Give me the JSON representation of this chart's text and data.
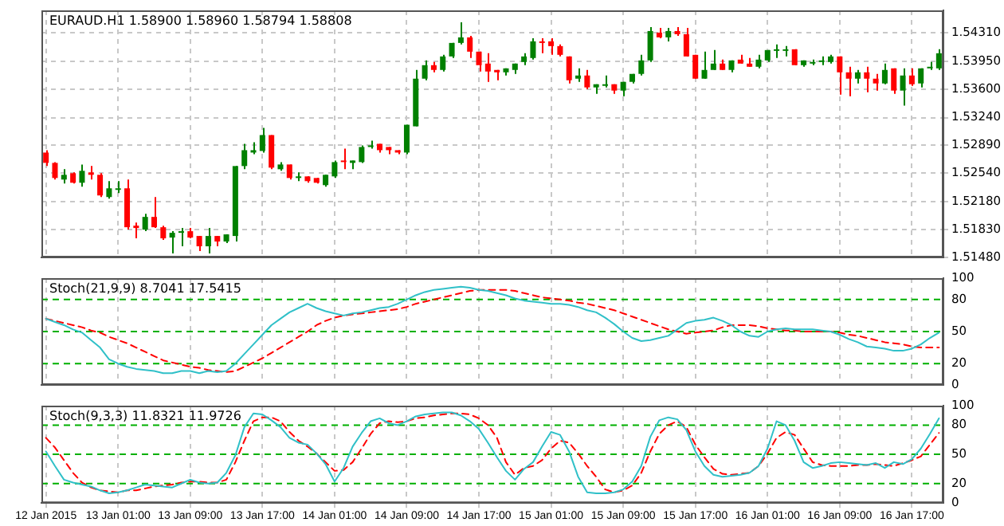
{
  "chart_data": [
    {
      "type": "candlestick",
      "title": "EURAUD.H1 1.58900 1.58960 1.58794 1.58808",
      "categories": [
        null,
        null,
        null,
        null,
        null,
        null,
        null,
        null,
        null,
        null,
        null,
        null,
        null,
        null,
        null,
        null,
        null,
        null,
        null,
        null,
        null,
        null,
        null,
        null,
        null,
        null,
        null,
        null,
        null,
        null,
        null,
        null,
        null,
        null,
        null,
        null,
        null,
        null,
        null,
        null,
        null,
        null,
        null,
        null,
        null,
        null,
        null,
        null,
        null,
        null,
        null,
        null,
        null,
        null,
        null,
        null,
        null,
        null,
        null,
        null,
        null,
        null,
        null,
        null,
        null,
        null,
        null,
        null,
        null,
        null,
        null,
        null,
        null,
        null,
        null,
        null,
        null,
        null,
        null,
        null,
        null,
        null,
        null,
        null,
        null,
        null,
        null,
        null,
        null,
        null,
        null,
        null,
        null,
        null,
        null,
        null,
        null,
        null,
        null,
        null
      ],
      "ohlc": [
        [
          1.528,
          1.5283,
          1.5263,
          1.5267
        ],
        [
          1.5267,
          1.5268,
          1.5246,
          1.5248
        ],
        [
          1.5246,
          1.5259,
          1.5241,
          1.5252
        ],
        [
          1.5254,
          1.5255,
          1.5241,
          1.5242
        ],
        [
          1.5242,
          1.5265,
          1.5237,
          1.5257
        ],
        [
          1.5255,
          1.5263,
          1.5246,
          1.5252
        ],
        [
          1.5252,
          1.5254,
          1.5224,
          1.5226
        ],
        [
          1.5224,
          1.5244,
          1.5222,
          1.5235
        ],
        [
          1.5233,
          1.5244,
          1.5229,
          1.5235
        ],
        [
          1.5235,
          1.5246,
          1.5183,
          1.5186
        ],
        [
          1.5188,
          1.5192,
          1.5172,
          1.5185
        ],
        [
          1.5183,
          1.5203,
          1.5181,
          1.5199
        ],
        [
          1.5199,
          1.5224,
          1.5185,
          1.5186
        ],
        [
          1.5186,
          1.5188,
          1.517,
          1.5172
        ],
        [
          1.5173,
          1.5181,
          1.5153,
          1.5179
        ],
        [
          1.5179,
          1.5185,
          1.5162,
          1.5181
        ],
        [
          1.5181,
          1.5185,
          1.5172,
          1.5173
        ],
        [
          1.5175,
          1.5175,
          1.5156,
          1.5162
        ],
        [
          1.5162,
          1.5185,
          1.5153,
          1.5175
        ],
        [
          1.5175,
          1.5175,
          1.5162,
          1.5168
        ],
        [
          1.5168,
          1.5177,
          1.5166,
          1.5177
        ],
        [
          1.5175,
          1.5263,
          1.5168,
          1.5263
        ],
        [
          1.5263,
          1.5291,
          1.5259,
          1.5283
        ],
        [
          1.528,
          1.5293,
          1.5278,
          1.5283
        ],
        [
          1.5282,
          1.5311,
          1.528,
          1.5302
        ],
        [
          1.5302,
          1.5302,
          1.5259,
          1.5261
        ],
        [
          1.5259,
          1.5268,
          1.5257,
          1.5265
        ],
        [
          1.5265,
          1.5265,
          1.5246,
          1.5248
        ],
        [
          1.5249,
          1.5255,
          1.5244,
          1.525
        ],
        [
          1.525,
          1.525,
          1.5242,
          1.5244
        ],
        [
          1.5248,
          1.5248,
          1.5241,
          1.5242
        ],
        [
          1.5239,
          1.5252,
          1.5237,
          1.5252
        ],
        [
          1.525,
          1.527,
          1.5248,
          1.5268
        ],
        [
          1.527,
          1.5285,
          1.5259,
          1.5268
        ],
        [
          1.5267,
          1.527,
          1.5259,
          1.527
        ],
        [
          1.5268,
          1.5289,
          1.5267,
          1.5287
        ],
        [
          1.5287,
          1.5295,
          1.5285,
          1.5289
        ],
        [
          1.5291,
          1.5291,
          1.528,
          1.5283
        ],
        [
          1.5287,
          1.5287,
          1.5278,
          1.5283
        ],
        [
          1.5283,
          1.5283,
          1.5278,
          1.528
        ],
        [
          1.528,
          1.5315,
          1.5278,
          1.5315
        ],
        [
          1.5313,
          1.5384,
          1.5313,
          1.5373
        ],
        [
          1.5373,
          1.5396,
          1.5371,
          1.539
        ],
        [
          1.539,
          1.5394,
          1.5381,
          1.5384
        ],
        [
          1.5384,
          1.5403,
          1.5382,
          1.5401
        ],
        [
          1.5401,
          1.5418,
          1.5399,
          1.5418
        ],
        [
          1.5418,
          1.5444,
          1.5416,
          1.5425
        ],
        [
          1.5425,
          1.5427,
          1.5399,
          1.5407
        ],
        [
          1.5407,
          1.5407,
          1.5382,
          1.539
        ],
        [
          1.5392,
          1.5405,
          1.5369,
          1.5382
        ],
        [
          1.5384,
          1.5384,
          1.5371,
          1.5381
        ],
        [
          1.5381,
          1.5386,
          1.5377,
          1.5386
        ],
        [
          1.5384,
          1.5392,
          1.5379,
          1.5392
        ],
        [
          1.5394,
          1.5405,
          1.539,
          1.5401
        ],
        [
          1.5399,
          1.5424,
          1.5397,
          1.542
        ],
        [
          1.542,
          1.5424,
          1.5405,
          1.5418
        ],
        [
          1.542,
          1.5424,
          1.5403,
          1.5414
        ],
        [
          1.5414,
          1.5416,
          1.5401,
          1.5403
        ],
        [
          1.5401,
          1.5401,
          1.5367,
          1.5371
        ],
        [
          1.5373,
          1.5386,
          1.5369,
          1.5377
        ],
        [
          1.5377,
          1.5384,
          1.536,
          1.5362
        ],
        [
          1.5362,
          1.5366,
          1.5354,
          1.5366
        ],
        [
          1.5365,
          1.5377,
          1.5362,
          1.5366
        ],
        [
          1.5366,
          1.5366,
          1.5354,
          1.5358
        ],
        [
          1.5358,
          1.5369,
          1.5351,
          1.5369
        ],
        [
          1.5369,
          1.5379,
          1.5367,
          1.5379
        ],
        [
          1.5379,
          1.5403,
          1.5377,
          1.5396
        ],
        [
          1.5396,
          1.5438,
          1.5394,
          1.5433
        ],
        [
          1.5431,
          1.5437,
          1.5424,
          1.5425
        ],
        [
          1.5425,
          1.5437,
          1.542,
          1.5433
        ],
        [
          1.5433,
          1.5438,
          1.5427,
          1.5429
        ],
        [
          1.5429,
          1.5437,
          1.5401,
          1.5401
        ],
        [
          1.5403,
          1.5403,
          1.5373,
          1.5373
        ],
        [
          1.5373,
          1.5407,
          1.5373,
          1.5384
        ],
        [
          1.5384,
          1.5409,
          1.5384,
          1.5392
        ],
        [
          1.5392,
          1.5397,
          1.5384,
          1.5384
        ],
        [
          1.5384,
          1.5396,
          1.5381,
          1.5396
        ],
        [
          1.5397,
          1.5403,
          1.5392,
          1.5392
        ],
        [
          1.5392,
          1.5399,
          1.5388,
          1.5388
        ],
        [
          1.5388,
          1.5403,
          1.5386,
          1.5397
        ],
        [
          1.5396,
          1.5409,
          1.5394,
          1.5409
        ],
        [
          1.5409,
          1.5416,
          1.5399,
          1.541
        ],
        [
          1.5409,
          1.5414,
          1.5401,
          1.541
        ],
        [
          1.541,
          1.541,
          1.539,
          1.539
        ],
        [
          1.539,
          1.5396,
          1.5388,
          1.5396
        ],
        [
          1.5393,
          1.5397,
          1.539,
          1.5394
        ],
        [
          1.5394,
          1.5401,
          1.539,
          1.5396
        ],
        [
          1.5394,
          1.5403,
          1.5392,
          1.5401
        ],
        [
          1.5401,
          1.5401,
          1.5353,
          1.5381
        ],
        [
          1.5381,
          1.5388,
          1.5351,
          1.5373
        ],
        [
          1.5373,
          1.5384,
          1.5367,
          1.5381
        ],
        [
          1.5381,
          1.5388,
          1.5356,
          1.5373
        ],
        [
          1.5373,
          1.5379,
          1.5358,
          1.5367
        ],
        [
          1.5367,
          1.5392,
          1.5366,
          1.5384
        ],
        [
          1.5386,
          1.5386,
          1.5354,
          1.5358
        ],
        [
          1.5358,
          1.5386,
          1.5339,
          1.5377
        ],
        [
          1.5377,
          1.5386,
          1.5364,
          1.5366
        ],
        [
          1.5367,
          1.5386,
          1.5362,
          1.5386
        ],
        [
          1.5386,
          1.5394,
          1.5384,
          1.5388
        ],
        [
          1.5386,
          1.541,
          1.5384,
          1.5405
        ]
      ],
      "colors": [
        "#ff0000",
        "#ff0000",
        "#008000",
        "#ff0000",
        "#008000",
        "#ff0000",
        "#ff0000",
        "#008000",
        "#008000",
        "#ff0000",
        "#ff0000",
        "#008000",
        "#ff0000",
        "#ff0000",
        "#008000",
        "#008000",
        "#ff0000",
        "#ff0000",
        "#008000",
        "#ff0000",
        "#008000",
        "#008000",
        "#008000",
        "#008000",
        "#008000",
        "#ff0000",
        "#008000",
        "#ff0000",
        "#008000",
        "#ff0000",
        "#ff0000",
        "#008000",
        "#008000",
        "#ff0000",
        "#008000",
        "#008000",
        "#008000",
        "#ff0000",
        "#ff0000",
        "#ff0000",
        "#008000",
        "#008000",
        "#008000",
        "#ff0000",
        "#008000",
        "#008000",
        "#008000",
        "#ff0000",
        "#ff0000",
        "#ff0000",
        "#ff0000",
        "#008000",
        "#008000",
        "#008000",
        "#008000",
        "#ff0000",
        "#ff0000",
        "#ff0000",
        "#ff0000",
        "#008000",
        "#ff0000",
        "#008000",
        "#008000",
        "#ff0000",
        "#008000",
        "#008000",
        "#008000",
        "#008000",
        "#ff0000",
        "#008000",
        "#ff0000",
        "#ff0000",
        "#ff0000",
        "#008000",
        "#008000",
        "#ff0000",
        "#008000",
        "#ff0000",
        "#ff0000",
        "#008000",
        "#008000",
        "#008000",
        "#008000",
        "#ff0000",
        "#008000",
        "#008000",
        "#008000",
        "#008000",
        "#ff0000",
        "#ff0000",
        "#008000",
        "#ff0000",
        "#ff0000",
        "#008000",
        "#ff0000",
        "#008000",
        "#ff0000",
        "#008000",
        "#008000",
        "#008000"
      ],
      "ylim": [
        1.5148,
        1.5459
      ],
      "yticks": [
        {
          "value": 1.5431,
          "label": "1.54310"
        },
        {
          "value": 1.5395,
          "label": "1.53950"
        },
        {
          "value": 1.536,
          "label": "1.53600"
        },
        {
          "value": 1.5324,
          "label": "1.53240"
        },
        {
          "value": 1.5289,
          "label": "1.52890"
        },
        {
          "value": 1.5254,
          "label": "1.52540"
        },
        {
          "value": 1.5218,
          "label": "1.52180"
        },
        {
          "value": 1.5183,
          "label": "1.51830"
        },
        {
          "value": 1.5148,
          "label": "1.51480"
        }
      ],
      "grid": true,
      "tick_labels": "y"
    },
    {
      "type": "line",
      "title": "Stoch(21,9,9) 8.7041 17.5415",
      "categories": [
        null,
        null,
        null,
        null,
        null,
        null,
        null,
        null,
        null,
        null,
        null,
        null,
        null,
        null,
        null,
        null,
        null,
        null,
        null,
        null,
        null,
        null,
        null,
        null,
        null,
        null,
        null,
        null,
        null,
        null,
        null,
        null,
        null,
        null,
        null,
        null,
        null,
        null,
        null,
        null,
        null,
        null,
        null,
        null,
        null,
        null,
        null,
        null,
        null,
        null,
        null,
        null,
        null,
        null,
        null,
        null,
        null,
        null,
        null,
        null,
        null,
        null,
        null,
        null,
        null,
        null,
        null,
        null,
        null,
        null,
        null,
        null,
        null,
        null,
        null,
        null,
        null,
        null,
        null,
        null,
        null,
        null,
        null,
        null,
        null,
        null,
        null,
        null,
        null,
        null,
        null,
        null,
        null,
        null,
        null,
        null,
        null,
        null,
        null,
        null
      ],
      "series": [
        {
          "color": "#30c0c8",
          "line_style": "solid",
          "values": [
            62,
            59,
            56,
            52,
            49,
            42,
            35,
            24,
            20,
            17,
            15,
            14,
            13,
            11,
            11,
            13,
            13,
            11,
            13,
            12,
            13,
            20,
            29,
            38,
            47,
            56,
            62,
            68,
            72,
            76,
            72,
            69,
            67,
            65,
            67,
            68,
            70,
            72,
            73,
            76,
            80,
            84,
            87,
            89,
            90,
            91,
            92,
            91,
            89,
            88,
            86,
            84,
            81,
            79,
            78,
            77,
            76,
            76,
            75,
            73,
            70,
            68,
            63,
            57,
            50,
            44,
            41,
            42,
            44,
            46,
            52,
            58,
            60,
            61,
            63,
            60,
            56,
            50,
            46,
            45,
            50,
            52,
            53,
            52,
            52,
            52,
            51,
            50,
            47,
            43,
            40,
            36,
            35,
            34,
            32,
            32,
            34,
            38,
            44,
            49
          ]
        },
        {
          "color": "#ff0000",
          "line_style": "dashed",
          "values": [
            62,
            60,
            58,
            56,
            54,
            51,
            49,
            45,
            42,
            39,
            35,
            31,
            27,
            23,
            21,
            19,
            17,
            16,
            14,
            13,
            12,
            13,
            17,
            21,
            25,
            30,
            35,
            40,
            45,
            50,
            56,
            60,
            63,
            65,
            66,
            67,
            68,
            69,
            70,
            71,
            73,
            76,
            78,
            80,
            82,
            84,
            86,
            88,
            89,
            89,
            89,
            89,
            88,
            86,
            84,
            82,
            81,
            80,
            79,
            77,
            76,
            74,
            72,
            70,
            67,
            64,
            61,
            58,
            55,
            52,
            50,
            48,
            49,
            50,
            51,
            54,
            56,
            56,
            56,
            55,
            53,
            52,
            51,
            51,
            50,
            50,
            50,
            50,
            49,
            47,
            46,
            44,
            42,
            40,
            39,
            38,
            36,
            35,
            35,
            35
          ]
        }
      ],
      "ylim": [
        0,
        100
      ],
      "yticks": [
        0,
        20,
        50,
        80,
        100
      ],
      "grid": "x",
      "tick_labels": "y",
      "ref_lines": [
        {
          "axis": "y",
          "value": 80,
          "color": "#00b000",
          "line_style": "dashed"
        },
        {
          "axis": "y",
          "value": 50,
          "color": "#00b000",
          "line_style": "dashed"
        },
        {
          "axis": "y",
          "value": 20,
          "color": "#00b000",
          "line_style": "dashed"
        }
      ]
    },
    {
      "type": "line",
      "title": "Stoch(9,3,3) 11.8321 11.9726",
      "categories": [
        "12 Jan 2015",
        null,
        null,
        null,
        null,
        null,
        null,
        null,
        "13 Jan 01:00",
        null,
        null,
        null,
        null,
        null,
        null,
        null,
        "13 Jan 09:00",
        null,
        null,
        null,
        null,
        null,
        null,
        null,
        "13 Jan 17:00",
        null,
        null,
        null,
        null,
        null,
        null,
        null,
        "14 Jan 01:00",
        null,
        null,
        null,
        null,
        null,
        null,
        null,
        "14 Jan 09:00",
        null,
        null,
        null,
        null,
        null,
        null,
        null,
        "14 Jan 17:00",
        null,
        null,
        null,
        null,
        null,
        null,
        null,
        "15 Jan 01:00",
        null,
        null,
        null,
        null,
        null,
        null,
        null,
        "15 Jan 09:00",
        null,
        null,
        null,
        null,
        null,
        null,
        null,
        "15 Jan 17:00",
        null,
        null,
        null,
        null,
        null,
        null,
        null,
        "16 Jan 01:00",
        null,
        null,
        null,
        null,
        null,
        null,
        null,
        "16 Jan 09:00",
        null,
        null,
        null,
        null,
        null,
        null,
        null,
        "16 Jan 17:00",
        null,
        null,
        null
      ],
      "series": [
        {
          "color": "#30c0c8",
          "line_style": "solid",
          "values": [
            53,
            38,
            24,
            21,
            19,
            17,
            13,
            10,
            11,
            13,
            16,
            19,
            18,
            17,
            16,
            20,
            24,
            21,
            20,
            21,
            31,
            49,
            78,
            92,
            91,
            85,
            78,
            67,
            62,
            60,
            51,
            40,
            22,
            36,
            58,
            72,
            84,
            87,
            82,
            80,
            84,
            89,
            91,
            92,
            93,
            93,
            90,
            84,
            76,
            62,
            47,
            33,
            24,
            35,
            42,
            58,
            73,
            70,
            53,
            27,
            11,
            10,
            10,
            11,
            14,
            22,
            38,
            68,
            85,
            88,
            86,
            75,
            53,
            38,
            29,
            27,
            28,
            29,
            31,
            38,
            56,
            84,
            80,
            64,
            42,
            36,
            38,
            41,
            42,
            41,
            40,
            39,
            41,
            36,
            42,
            40,
            45,
            56,
            71,
            87
          ]
        },
        {
          "color": "#ff0000",
          "line_style": "dashed",
          "values": [
            67,
            57,
            44,
            31,
            21,
            16,
            13,
            12,
            11,
            13,
            13,
            15,
            17,
            18,
            19,
            21,
            22,
            22,
            21,
            21,
            24,
            42,
            64,
            84,
            88,
            88,
            84,
            73,
            64,
            58,
            51,
            42,
            33,
            34,
            42,
            56,
            71,
            82,
            84,
            83,
            84,
            87,
            88,
            90,
            91,
            92,
            92,
            91,
            87,
            80,
            67,
            42,
            29,
            36,
            38,
            44,
            56,
            64,
            62,
            51,
            38,
            27,
            14,
            11,
            13,
            18,
            31,
            53,
            71,
            80,
            84,
            78,
            60,
            47,
            35,
            30,
            29,
            30,
            31,
            38,
            51,
            67,
            73,
            70,
            56,
            42,
            39,
            38,
            38,
            38,
            39,
            39,
            40,
            39,
            38,
            41,
            44,
            48,
            60,
            72
          ]
        }
      ],
      "ylim": [
        0,
        100
      ],
      "yticks": [
        0,
        20,
        50,
        80,
        100
      ],
      "grid": "x",
      "ref_lines": [
        {
          "axis": "y",
          "value": 80,
          "color": "#00b000",
          "line_style": "dashed"
        },
        {
          "axis": "y",
          "value": 50,
          "color": "#00b000",
          "line_style": "dashed"
        },
        {
          "axis": "y",
          "value": 20,
          "color": "#00b000",
          "line_style": "dashed"
        }
      ]
    }
  ]
}
